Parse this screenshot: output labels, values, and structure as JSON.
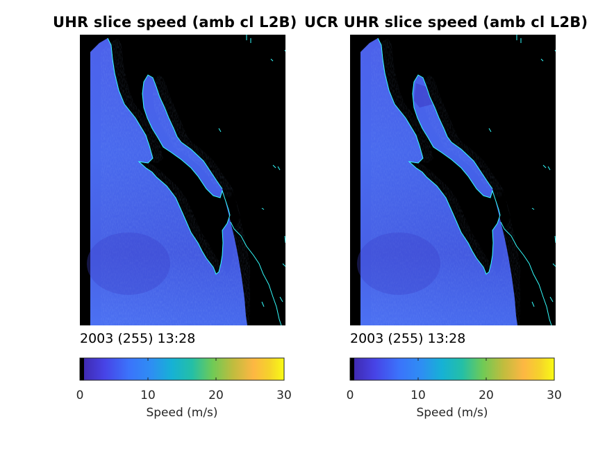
{
  "chart_data": [
    {
      "type": "heatmap",
      "title": "UHR slice speed (amb cl L2B)",
      "timestamp": "2003 (255) 13:28",
      "colorbar": {
        "label": "Speed (m/s)",
        "range": [
          0,
          30
        ],
        "ticks": [
          0,
          10,
          20,
          30
        ],
        "colormap": "parula",
        "orientation": "horizontal"
      },
      "background_color": "#000000",
      "coastline_color": "#33ffff"
    },
    {
      "type": "heatmap",
      "title": "UCR UHR slice speed (amb cl L2B)",
      "timestamp": "2003 (255) 13:28",
      "colorbar": {
        "label": "Speed (m/s)",
        "range": [
          0,
          30
        ],
        "ticks": [
          0,
          10,
          20,
          30
        ],
        "colormap": "parula",
        "orientation": "horizontal"
      },
      "background_color": "#000000",
      "coastline_color": "#33ffff"
    }
  ]
}
